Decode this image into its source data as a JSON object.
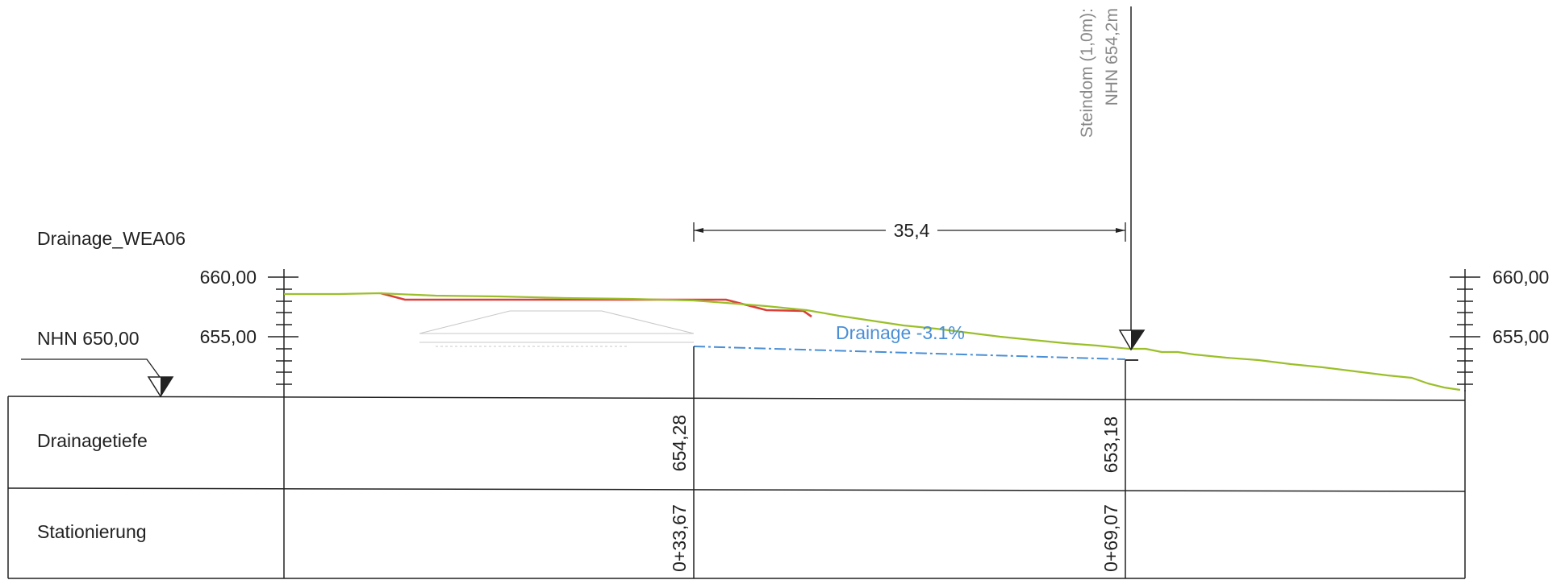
{
  "title": "Drainage_WEA06",
  "reference_level": "NHN 650,00",
  "elevation_scale": {
    "left_labels": [
      "660,00",
      "655,00"
    ],
    "right_labels": [
      "660,00",
      "655,00"
    ]
  },
  "dimension": {
    "value": "35,4"
  },
  "drainage_label": "Drainage -3.1%",
  "steindom": {
    "line1": "Steindom (1,0m):",
    "line2": "NHN 654,2m"
  },
  "table": {
    "rows": [
      {
        "label": "Drainagetiefe",
        "values": [
          "654,28",
          "653,18"
        ]
      },
      {
        "label": "Stationierung",
        "values": [
          "0+33,67",
          "0+69,07"
        ]
      }
    ]
  },
  "colors": {
    "terrain": "#9bbf2a",
    "existing_surface": "#d9403a",
    "drainage": "#4a8fd6",
    "linework": "#222222",
    "steindom_text": "#888888"
  }
}
